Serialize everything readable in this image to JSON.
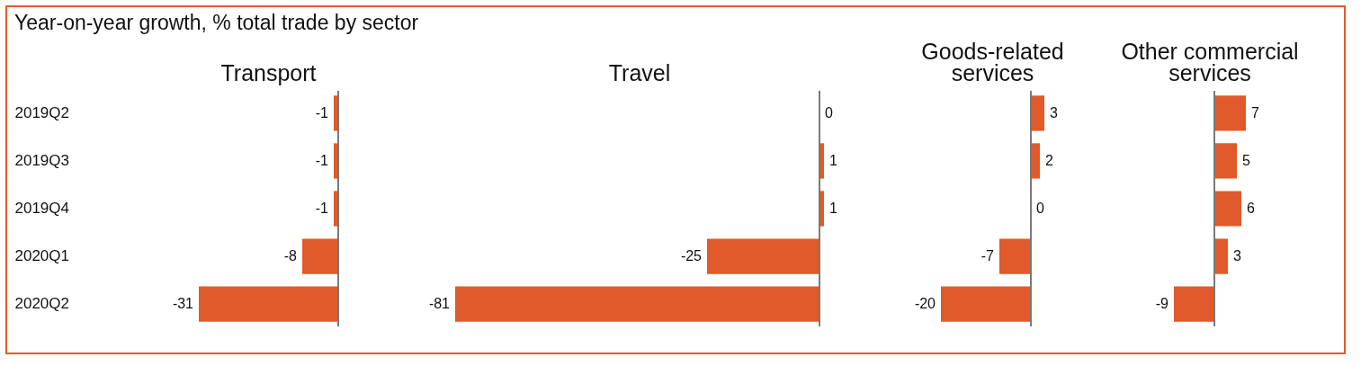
{
  "chart_data": [
    {
      "type": "bar",
      "orientation": "horizontal",
      "title": "Transport",
      "annotations": [
        "Year-on-year growth, % total trade by sector"
      ],
      "categories": [
        "2019Q2",
        "2019Q3",
        "2019Q4",
        "2020Q1",
        "2020Q2"
      ],
      "values": [
        -1,
        -1,
        -1,
        -8,
        -31
      ],
      "color": "#e05a2b",
      "data_labels": true,
      "tick_labels": "y"
    },
    {
      "type": "bar",
      "orientation": "horizontal",
      "title": "Travel",
      "categories": [
        null,
        null,
        null,
        null,
        null
      ],
      "values": [
        0,
        1,
        1,
        -25,
        -81
      ],
      "color": "#e05a2b",
      "data_labels": true,
      "tick_labels": false
    },
    {
      "type": "bar",
      "orientation": "horizontal",
      "title": "Goods-related services",
      "categories": [
        null,
        null,
        null,
        null,
        null
      ],
      "values": [
        3,
        2,
        0,
        -7,
        -20
      ],
      "color": "#e05a2b",
      "data_labels": true,
      "tick_labels": false
    },
    {
      "type": "bar",
      "orientation": "horizontal",
      "title": "Other commercial services",
      "categories": [
        null,
        null,
        null,
        null,
        null
      ],
      "values": [
        7,
        5,
        6,
        3,
        -9
      ],
      "color": "#e05a2b",
      "data_labels": true,
      "tick_labels": false
    }
  ]
}
